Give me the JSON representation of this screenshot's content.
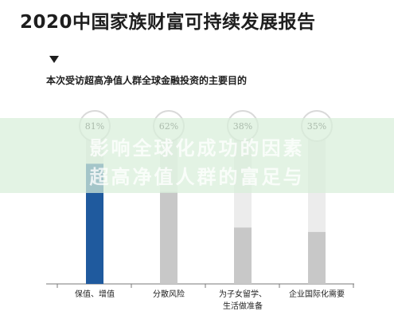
{
  "header": {
    "title": "2020中国家族财富可持续发展报告",
    "subtitle": "本次受访超高净值人群全球金融投资的主要目的"
  },
  "overlay": {
    "line1": "影响全球化成功的因素",
    "line2": "超高净值人群的富足与"
  },
  "colors": {
    "highlight_bar": "#1f5a9e",
    "other_bar": "#c8c8c8",
    "circle": "#d9d9d9",
    "overlay": "#d8eeda"
  },
  "chart_data": {
    "type": "bar",
    "title": "本次受访超高净值人群全球金融投资的主要目的",
    "categories": [
      "保值、增值",
      "分散风险",
      "为子女留学、生活做准备",
      "企业国际化需要"
    ],
    "category_labels": [
      [
        "保值、增值"
      ],
      [
        "分散风险"
      ],
      [
        "为子女留学、",
        "生活做准备"
      ],
      [
        "企业国际化需要"
      ]
    ],
    "values": [
      81,
      62,
      38,
      35
    ],
    "value_labels": [
      "81%",
      "62%",
      "38%",
      "35%"
    ],
    "unit": "%",
    "ylim": [
      0,
      100
    ],
    "highlight_index": 0,
    "grid": false,
    "legend": "none"
  }
}
